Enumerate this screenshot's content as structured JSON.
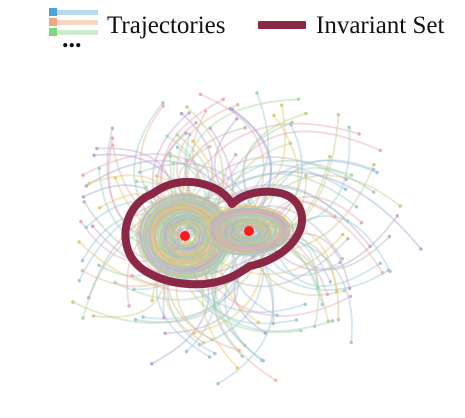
{
  "legend": {
    "trajectories_label": "Trajectories",
    "invariant_label": "Invariant Set",
    "ellipsis": "...",
    "trajectory_swatches": [
      {
        "marker": "#4aa3d9",
        "line": "#b9d9ee"
      },
      {
        "marker": "#f4a582",
        "line": "#f7d6c6"
      },
      {
        "marker": "#7ed67e",
        "line": "#cdeccd"
      }
    ],
    "invariant_color": "#8b2845"
  },
  "figure": {
    "equilibrium_color": "#ff1a1a",
    "trajectory_palette": [
      "#9bc6e0",
      "#e7b6a0",
      "#a8d8a0",
      "#c7a3cf",
      "#e6c96b",
      "#9ad0c8",
      "#e8a6b8",
      "#a9a9d6",
      "#c9c98a",
      "#b7b7b7"
    ]
  }
}
